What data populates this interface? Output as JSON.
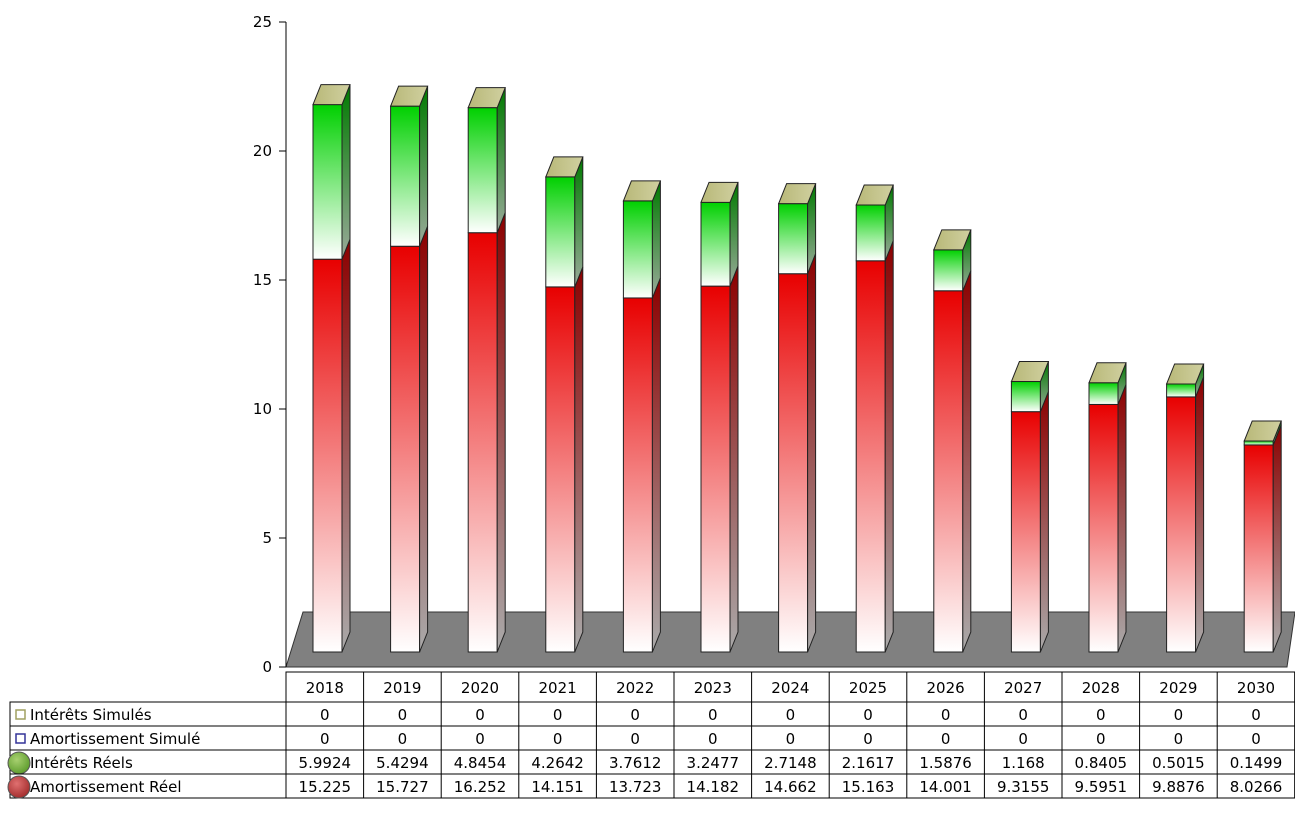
{
  "chart_data": {
    "type": "bar",
    "stacked": true,
    "three_d": true,
    "categories": [
      "2018",
      "2019",
      "2020",
      "2021",
      "2022",
      "2023",
      "2024",
      "2025",
      "2026",
      "2027",
      "2028",
      "2029",
      "2030"
    ],
    "ylim": [
      0,
      25
    ],
    "yticks": [
      "0",
      "5",
      "10",
      "15",
      "20",
      "25"
    ],
    "legend_placement": "bottom-left data table",
    "series": [
      {
        "name": "Intérêts Simulés",
        "values": [
          "0",
          "0",
          "0",
          "0",
          "0",
          "0",
          "0",
          "0",
          "0",
          "0",
          "0",
          "0",
          "0"
        ],
        "color": "#a0a060",
        "marker": "square"
      },
      {
        "name": "Amortissement Simulé",
        "values": [
          "0",
          "0",
          "0",
          "0",
          "0",
          "0",
          "0",
          "0",
          "0",
          "0",
          "0",
          "0",
          "0"
        ],
        "color": "#333399",
        "marker": "square"
      },
      {
        "name": "Intérêts Réels",
        "values": [
          "5.9924",
          "5.4294",
          "4.8454",
          "4.2642",
          "3.7612",
          "3.2477",
          "2.7148",
          "2.1617",
          "1.5876",
          "1.168",
          "0.8405",
          "0.5015",
          "0.1499"
        ],
        "color": "#00cc00",
        "marker": "circle"
      },
      {
        "name": "Amortissement Réel",
        "values": [
          "15.225",
          "15.727",
          "16.252",
          "14.151",
          "13.723",
          "14.182",
          "14.662",
          "15.163",
          "14.001",
          "9.3155",
          "9.5951",
          "9.8876",
          "8.0266"
        ],
        "color": "#dd0000",
        "marker": "circle"
      }
    ]
  }
}
